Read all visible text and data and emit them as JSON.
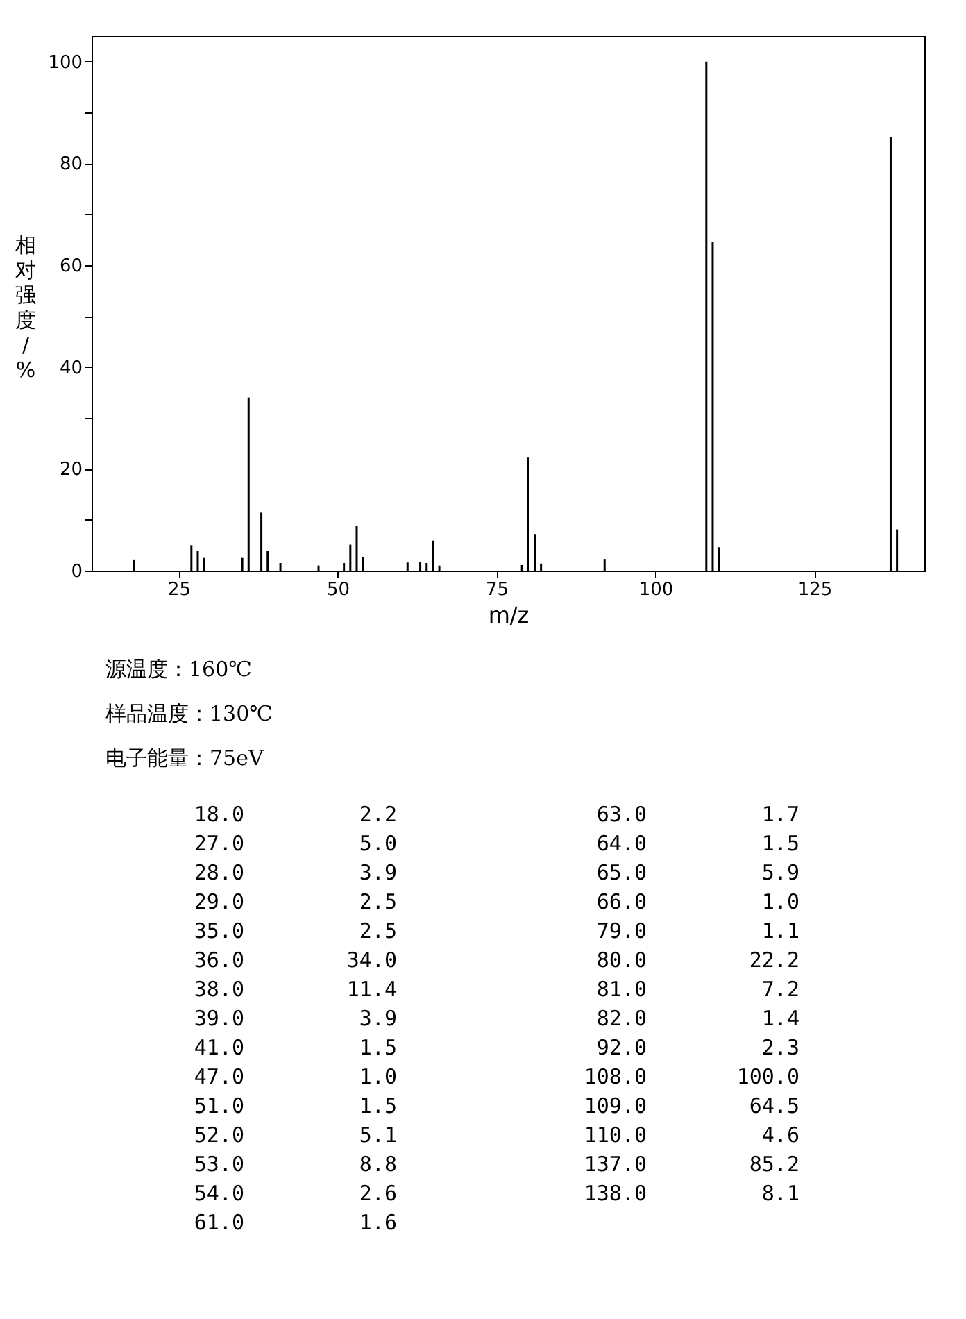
{
  "chart_data": {
    "type": "bar",
    "xlabel": "m/z",
    "ylabel": "相对强度/%",
    "x": [
      18,
      27,
      28,
      29,
      35,
      36,
      38,
      39,
      41,
      47,
      51,
      52,
      53,
      54,
      61,
      63,
      64,
      65,
      66,
      79,
      80,
      81,
      82,
      92,
      108,
      109,
      110,
      137,
      138
    ],
    "values": [
      2.2,
      5.0,
      3.9,
      2.5,
      2.5,
      34.0,
      11.4,
      3.9,
      1.5,
      1.0,
      1.5,
      5.1,
      8.8,
      2.6,
      1.6,
      1.7,
      1.5,
      5.9,
      1.0,
      1.1,
      22.2,
      7.2,
      1.4,
      2.3,
      100.0,
      64.5,
      4.6,
      85.2,
      8.1
    ],
    "color": "#000000",
    "xlim": [
      11.3,
      142.3
    ],
    "xticks": [
      25,
      50,
      75,
      100,
      125
    ],
    "ylim": [
      0,
      105
    ],
    "yticks": [
      0,
      {
        "value": 10,
        "label": null
      },
      20,
      {
        "value": 30,
        "label": null
      },
      40,
      {
        "value": 50,
        "label": null
      },
      60,
      {
        "value": 70,
        "label": null
      },
      80,
      {
        "value": 90,
        "label": null
      },
      100
    ],
    "grid": false,
    "legend": false,
    "annotations": [
      "源温度：160℃",
      "样品温度：130℃",
      "电子能量：75eV",
      "18.0",
      "2.2",
      "27.0",
      "5.0",
      "28.0",
      "3.9",
      "29.0",
      "2.5",
      "35.0",
      "2.5",
      "36.0",
      "34.0",
      "38.0",
      "11.4",
      "39.0",
      "3.9",
      "41.0",
      "1.5",
      "47.0",
      "1.0",
      "51.0",
      "1.5",
      "52.0",
      "5.1",
      "53.0",
      "8.8",
      "54.0",
      "2.6",
      "61.0",
      "1.6",
      "63.0",
      "1.7",
      "64.0",
      "1.5",
      "65.0",
      "5.9",
      "66.0",
      "1.0",
      "79.0",
      "1.1",
      "80.0",
      "22.2",
      "81.0",
      "7.2",
      "82.0",
      "1.4",
      "92.0",
      "2.3",
      "108.0",
      "100.0",
      "109.0",
      "64.5",
      "110.0",
      "4.6",
      "137.0",
      "85.2",
      "138.0",
      "8.1"
    ]
  }
}
